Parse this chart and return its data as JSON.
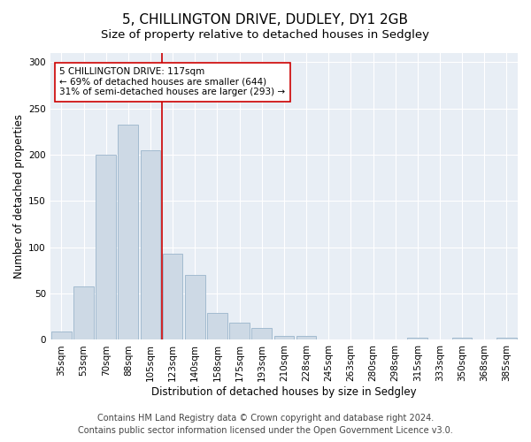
{
  "title": "5, CHILLINGTON DRIVE, DUDLEY, DY1 2GB",
  "subtitle": "Size of property relative to detached houses in Sedgley",
  "xlabel": "Distribution of detached houses by size in Sedgley",
  "ylabel": "Number of detached properties",
  "categories": [
    "35sqm",
    "53sqm",
    "70sqm",
    "88sqm",
    "105sqm",
    "123sqm",
    "140sqm",
    "158sqm",
    "175sqm",
    "193sqm",
    "210sqm",
    "228sqm",
    "245sqm",
    "263sqm",
    "280sqm",
    "298sqm",
    "315sqm",
    "333sqm",
    "350sqm",
    "368sqm",
    "385sqm"
  ],
  "values": [
    9,
    58,
    200,
    233,
    205,
    93,
    70,
    29,
    19,
    13,
    4,
    4,
    0,
    0,
    0,
    0,
    2,
    0,
    2,
    0,
    2
  ],
  "bar_color": "#cdd9e5",
  "bar_edge_color": "#9ab5cb",
  "vline_x_index": 5,
  "vline_color": "#cc0000",
  "annotation_line1": "5 CHILLINGTON DRIVE: 117sqm",
  "annotation_line2": "← 69% of detached houses are smaller (644)",
  "annotation_line3": "31% of semi-detached houses are larger (293) →",
  "annotation_box_facecolor": "#ffffff",
  "annotation_box_edgecolor": "#cc0000",
  "ylim": [
    0,
    310
  ],
  "yticks": [
    0,
    50,
    100,
    150,
    200,
    250,
    300
  ],
  "background_color": "#ffffff",
  "plot_background_color": "#e8eef5",
  "grid_color": "#ffffff",
  "title_fontsize": 11,
  "subtitle_fontsize": 9.5,
  "axis_label_fontsize": 8.5,
  "tick_fontsize": 7.5,
  "annotation_fontsize": 7.5,
  "footer_fontsize": 7,
  "footer_line1": "Contains HM Land Registry data © Crown copyright and database right 2024.",
  "footer_line2": "Contains public sector information licensed under the Open Government Licence v3.0."
}
